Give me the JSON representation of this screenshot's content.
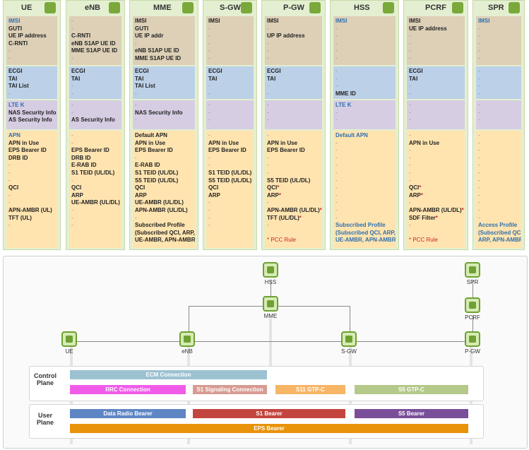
{
  "columns": [
    {
      "name": "UE",
      "icon": "phone-icon",
      "s1": [
        "IMSI",
        "GUTI",
        "UE IP address",
        "C-RNTI",
        "-",
        "-"
      ],
      "s2": [
        "ECGI",
        "TAI",
        "TAI List",
        "-"
      ],
      "s3": [
        "LTE K",
        "NAS Security Info",
        "AS Security Info"
      ],
      "s4": [
        "APN",
        "APN in Use",
        "EPS Bearer ID",
        "DRB ID",
        "-",
        "-",
        "-",
        "QCI",
        "-",
        "-",
        "APN-AMBR (UL)",
        "TFT (UL)",
        "-"
      ]
    },
    {
      "name": "eNB",
      "icon": "antenna-icon",
      "s1": [
        "-",
        "-",
        "C-RNTI",
        "eNB S1AP UE ID",
        "MME S1AP UE ID",
        "-"
      ],
      "s2": [
        "ECGI",
        "TAI",
        "-",
        "-"
      ],
      "s3": [
        "-",
        "-",
        "AS Security Info"
      ],
      "s4": [
        "-",
        "-",
        "EPS Bearer ID",
        "DRB ID",
        "E-RAB ID",
        "S1 TEID (UL/DL)",
        "-",
        "QCI",
        "ARP",
        "UE-AMBR (UL/DL)",
        "-",
        "-",
        "-"
      ]
    },
    {
      "name": "MME",
      "icon": "gear-icon",
      "s1": [
        "IMSI",
        "GUTI",
        "UE IP addr",
        "-",
        "eNB S1AP UE ID",
        "MME S1AP UE ID"
      ],
      "s2": [
        "ECGI",
        "TAI",
        "TAI List",
        "-"
      ],
      "s3": [
        "-",
        "NAS Security Info",
        "-"
      ],
      "s4": [
        "Default APN",
        "APN in Use",
        "EPS Bearer ID",
        "-",
        "E-RAB ID",
        "S1 TEID (UL/DL)",
        "S5 TEID (UL/DL)",
        "QCI",
        "ARP",
        "UE-AMBR (UL/DL)",
        "APN-AMBR (UL/DL)",
        "-",
        "Subscribed Profile",
        "(Subscribed QCI, ARP,",
        "UE-AMBR, APN-AMBR)"
      ]
    },
    {
      "name": "S-GW",
      "icon": "gears-icon",
      "s1": [
        "IMSI",
        "-",
        "-",
        "-",
        "-",
        "-"
      ],
      "s2": [
        "ECGI",
        "TAI",
        "-",
        "-"
      ],
      "s3": [
        "-",
        "-",
        "-"
      ],
      "s4": [
        "-",
        "APN in Use",
        "EPS Bearer ID",
        "-",
        "-",
        "S1 TEID (UL/DL)",
        "S5 TEID (UL/DL)",
        "QCI",
        "ARP",
        "-",
        "-",
        "-",
        "-"
      ]
    },
    {
      "name": "P-GW",
      "icon": "network-icon",
      "s1": [
        "IMSI",
        "-",
        "UP IP address",
        "-",
        "-",
        "-"
      ],
      "s2": [
        "ECGI",
        "TAI",
        "-",
        "-"
      ],
      "s3": [
        "-",
        "-",
        "-"
      ],
      "s4": [
        "-",
        "APN in Use",
        "EPS Bearer ID",
        "-",
        "-",
        "-",
        "S5 TEID (UL/DL)",
        "QCI*",
        "ARP*",
        "-",
        "APN-AMBR (UL/DL)*",
        "TFT (UL/DL)*",
        "-",
        "",
        "* PCC Rule"
      ]
    },
    {
      "name": "HSS",
      "icon": "database-icon",
      "s1": [
        "IMSI",
        "-",
        "-",
        "-",
        "-",
        "-"
      ],
      "s2": [
        "-",
        "-",
        "-",
        "MME ID"
      ],
      "s3": [
        "LTE K",
        "-",
        "-"
      ],
      "s4": [
        "Default APN",
        "-",
        "-",
        "-",
        "-",
        "-",
        "-",
        "-",
        "-",
        "-",
        "-",
        "-",
        "Subscribed Profile",
        "(Subscribed QCI, ARP,",
        "UE-AMBR, APN-AMBR)"
      ]
    },
    {
      "name": "PCRF",
      "icon": "policy-icon",
      "s1": [
        "IMSI",
        "UE IP address",
        "-",
        "-",
        "-",
        "-"
      ],
      "s2": [
        "ECGI",
        "TAI",
        "-",
        "-"
      ],
      "s3": [
        "-",
        "-",
        "-"
      ],
      "s4": [
        "-",
        "APN in Use",
        "-",
        "-",
        "-",
        "-",
        "-",
        "QCI*",
        "ARP*",
        "-",
        "APN-AMBR (UL/DL)*",
        "SDF Filter*",
        "-",
        "",
        "* PCC Rule"
      ]
    },
    {
      "name": "SPR",
      "icon": "storage-icon",
      "s1": [
        "IMSI",
        "-",
        "-",
        "-",
        "-",
        "-"
      ],
      "s2": [
        "-",
        "-",
        "-",
        "-"
      ],
      "s3": [
        "-",
        "-",
        "-"
      ],
      "s4": [
        "-",
        "-",
        "-",
        "-",
        "-",
        "-",
        "-",
        "-",
        "-",
        "-",
        "-",
        "-",
        "Access Profile",
        "(Subscribed QCI,",
        "ARP, APN-AMBR)"
      ]
    }
  ],
  "diagram": {
    "nodes": {
      "hss": "HSS",
      "spr": "SPR",
      "mme": "MME",
      "pcrf": "PCRF",
      "ue": "UE",
      "enb": "eNB",
      "sgw": "S-GW",
      "pgw": "P-GW"
    },
    "control_plane": "Control Plane",
    "user_plane": "User Plane",
    "bars": {
      "ecm": "ECM Connection",
      "rrc": "RRC Connection",
      "s1sig": "S1 Signaling Connection",
      "s11": "S11 GTP-C",
      "s5c": "S5 GTP-C",
      "drb": "Data Radio Bearer",
      "s1b": "S1 Bearer",
      "s5b": "S5 Bearer",
      "eps": "EPS Bearer"
    }
  },
  "colors": {
    "ecm": "#9cc2d1",
    "rrc": "#f05ce8",
    "s1sig": "#d79b92",
    "s11": "#f7b566",
    "s5c": "#b4c98a",
    "drb": "#5f86c4",
    "s1b": "#c4453f",
    "s5b": "#7a4f9a",
    "eps": "#e8930a",
    "accent": "#6ea132"
  }
}
